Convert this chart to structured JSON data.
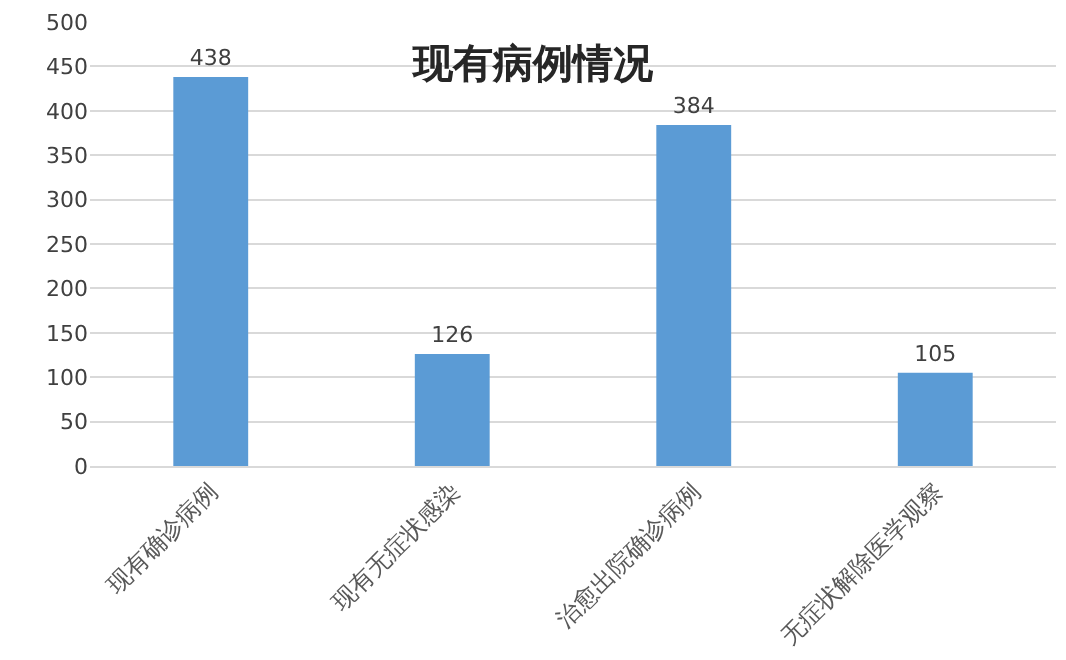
{
  "chart_data": {
    "type": "bar",
    "title": "现有病例情况",
    "categories": [
      "现有确诊病例",
      "现有无症状感染",
      "治愈出院确诊病例",
      "无症状解除医学观察"
    ],
    "values": [
      438,
      126,
      384,
      105
    ],
    "color": "#5b9bd5",
    "data_labels": true,
    "ylim": [
      0,
      500
    ],
    "yticks": [
      0,
      50,
      100,
      150,
      200,
      250,
      300,
      350,
      400,
      450,
      500
    ],
    "grid": "y",
    "legend": false
  }
}
